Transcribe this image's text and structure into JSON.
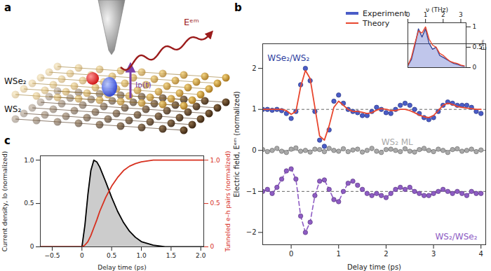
{
  "diagram": {
    "panel": "a",
    "layers": [
      "WSe₂",
      "WS₂"
    ],
    "emission_label": "Eᵉᵐ",
    "current_label": "Iᴅ(t)"
  },
  "chart_data": [
    {
      "panel": "b",
      "type": "line",
      "xlabel": "Delay time (ps)",
      "ylabel": "Electric field, Eᵉᵐ (normalized)",
      "xlim": [
        -0.6,
        4.1
      ],
      "ylim": [
        -2.3,
        2.6
      ],
      "xticks": [
        0,
        1,
        2,
        3,
        4
      ],
      "yticks": [
        -2,
        -1,
        0,
        1,
        2
      ],
      "baselines": [
        1,
        0,
        -1
      ],
      "annotations": [
        {
          "text": "WSe₂/WS₂",
          "x": -0.5,
          "y": 2.25,
          "color": "#2f3f9f"
        }
      ],
      "x": [
        -0.6,
        -0.5,
        -0.4,
        -0.3,
        -0.2,
        -0.1,
        0,
        0.1,
        0.2,
        0.3,
        0.4,
        0.5,
        0.6,
        0.7,
        0.8,
        0.9,
        1,
        1.1,
        1.2,
        1.3,
        1.4,
        1.5,
        1.6,
        1.7,
        1.8,
        1.9,
        2,
        2.1,
        2.2,
        2.3,
        2.4,
        2.5,
        2.6,
        2.7,
        2.8,
        2.9,
        3,
        3.1,
        3.2,
        3.3,
        3.4,
        3.5,
        3.6,
        3.7,
        3.8,
        3.9,
        4
      ],
      "series": [
        {
          "name": "Experiment",
          "type": "scatter",
          "marker": "circle",
          "legend": "top-right",
          "color": "#4a5cc7",
          "values": [
            1.0,
            1.0,
            0.98,
            1.0,
            0.97,
            0.9,
            0.78,
            0.95,
            1.6,
            2.0,
            1.7,
            0.95,
            0.25,
            0.1,
            0.5,
            1.2,
            1.35,
            1.15,
            1.0,
            0.95,
            0.92,
            0.85,
            0.85,
            0.95,
            1.05,
            1.0,
            0.92,
            0.9,
            1.0,
            1.1,
            1.15,
            1.1,
            1.0,
            0.9,
            0.8,
            0.75,
            0.8,
            0.95,
            1.1,
            1.18,
            1.15,
            1.1,
            1.1,
            1.1,
            1.05,
            0.95,
            0.9
          ]
        },
        {
          "name": "Theory",
          "type": "line",
          "legend": "top-right",
          "color": "#e8472f",
          "values": [
            1.0,
            1.0,
            1.0,
            1.0,
            1.0,
            0.97,
            0.88,
            0.95,
            1.55,
            1.95,
            1.75,
            1.05,
            0.35,
            0.25,
            0.6,
            1.05,
            1.2,
            1.1,
            1.0,
            0.95,
            0.95,
            0.93,
            0.9,
            0.92,
            0.98,
            1.02,
            1.0,
            0.97,
            0.97,
            1.0,
            1.0,
            0.97,
            0.92,
            0.86,
            0.82,
            0.8,
            0.85,
            0.97,
            1.1,
            1.15,
            1.12,
            1.07,
            1.05,
            1.03,
            1.02,
            1.0,
            1.0
          ]
        },
        {
          "name": "WS₂ ML",
          "type": "scatter",
          "marker": "circle",
          "color": "#a9a9a9",
          "values": [
            0.02,
            -0.03,
            0.0,
            0.05,
            -0.02,
            -0.05,
            0.03,
            0.06,
            -0.02,
            0.0,
            -0.04,
            0.03,
            0.02,
            -0.03,
            0.05,
            0.0,
            -0.02,
            0.04,
            -0.03,
            0.01,
            0.03,
            -0.04,
            0.0,
            0.05,
            -0.02,
            -0.05,
            0.02,
            0.03,
            0.0,
            -0.03,
            0.04,
            -0.02,
            -0.04,
            0.02,
            0.05,
            0.0,
            -0.03,
            0.03,
            0.0,
            -0.05,
            0.02,
            0.04,
            -0.02,
            0.0,
            0.03,
            -0.03,
            0.01
          ]
        },
        {
          "name": "WS₂/WSe₂",
          "type": "scatter",
          "marker": "circle",
          "line_style": "dashed",
          "color": "#8e5cc4",
          "values": [
            -1.0,
            -0.95,
            -1.05,
            -0.9,
            -0.7,
            -0.5,
            -0.45,
            -0.7,
            -1.6,
            -2.0,
            -1.75,
            -1.1,
            -0.75,
            -0.72,
            -0.95,
            -1.2,
            -1.25,
            -1.0,
            -0.8,
            -0.75,
            -0.85,
            -0.95,
            -1.05,
            -1.1,
            -1.05,
            -1.1,
            -1.15,
            -1.05,
            -0.95,
            -0.9,
            -0.95,
            -0.9,
            -1.0,
            -1.05,
            -1.1,
            -1.1,
            -1.05,
            -1.0,
            -0.95,
            -1.0,
            -1.05,
            -1.0,
            -1.05,
            -1.1,
            -1.0,
            -1.05,
            -1.05
          ]
        }
      ]
    },
    {
      "type": "area",
      "xlabel": "ν (THz)",
      "ylabel": "Ēᵉᵐ",
      "xlim": [
        0,
        3.3
      ],
      "ylim": [
        0,
        1.1
      ],
      "xticks": [
        0,
        1,
        2,
        3
      ],
      "yticks": [
        0,
        0.5,
        1
      ],
      "x": [
        0,
        0.2,
        0.4,
        0.6,
        0.8,
        1.0,
        1.2,
        1.4,
        1.6,
        1.8,
        2.0,
        2.2,
        2.4,
        2.6,
        2.8,
        3.0,
        3.2
      ],
      "series": [
        {
          "type": "area",
          "color": "#4a5cc7",
          "values": [
            0.05,
            0.2,
            0.55,
            0.95,
            0.75,
            0.95,
            0.6,
            0.45,
            0.5,
            0.3,
            0.25,
            0.2,
            0.15,
            0.1,
            0.08,
            0.05,
            0.03
          ]
        },
        {
          "type": "line",
          "color": "#e8472f",
          "values": [
            0.05,
            0.25,
            0.6,
            0.9,
            0.85,
            1.0,
            0.7,
            0.55,
            0.5,
            0.35,
            0.3,
            0.22,
            0.15,
            0.12,
            0.1,
            0.06,
            0.04
          ]
        }
      ]
    },
    {
      "panel": "c",
      "type": "line",
      "xlabel": "Delay time (ps)",
      "ylabel": "Current density, Iᴅ (normalized)",
      "y2label": "Tunneled e–h pairs (normalized)",
      "xlim": [
        -0.7,
        2.05
      ],
      "ylim": [
        0,
        1.05
      ],
      "y2lim": [
        0,
        1.05
      ],
      "xticks": [
        -0.5,
        0,
        0.5,
        {
          "value": 1,
          "label": "1.0"
        },
        1.5,
        {
          "value": 2,
          "label": "2.0"
        }
      ],
      "yticks": [
        0,
        0.5,
        {
          "value": 1,
          "label": "1.0"
        }
      ],
      "y2ticks": [
        0,
        0.5,
        {
          "value": 1,
          "label": "1.0"
        }
      ],
      "x": [
        -0.7,
        0,
        0.05,
        0.1,
        0.15,
        0.2,
        0.25,
        0.3,
        0.4,
        0.5,
        0.6,
        0.7,
        0.8,
        0.9,
        1.0,
        1.2,
        1.4,
        2.05
      ],
      "series": [
        {
          "type": "area",
          "color": "#000000",
          "values": [
            0,
            0,
            0.25,
            0.6,
            0.88,
            1.0,
            0.98,
            0.92,
            0.75,
            0.57,
            0.41,
            0.28,
            0.18,
            0.11,
            0.06,
            0.02,
            0,
            0
          ]
        },
        {
          "type": "line",
          "axis": "y2",
          "color": "#d7301f",
          "values": [
            0,
            0,
            0.02,
            0.06,
            0.13,
            0.22,
            0.31,
            0.41,
            0.57,
            0.7,
            0.8,
            0.88,
            0.93,
            0.96,
            0.98,
            1.0,
            1.0,
            1.0
          ]
        }
      ]
    }
  ]
}
